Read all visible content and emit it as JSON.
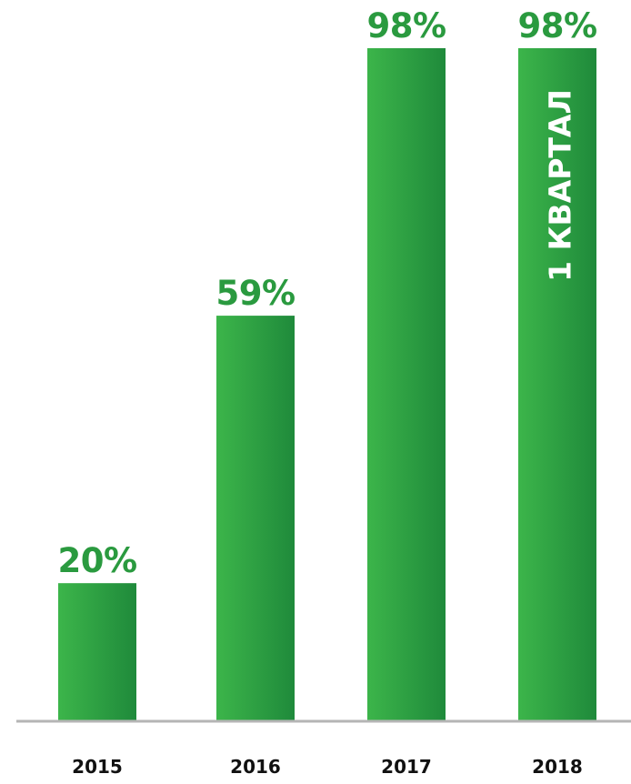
{
  "chart_data": {
    "type": "bar",
    "categories": [
      "2015",
      "2016",
      "2017",
      "2018"
    ],
    "values": [
      20,
      59,
      98,
      98
    ],
    "value_labels": [
      "20%",
      "59%",
      "98%",
      "98%"
    ],
    "annotations": [
      {
        "category": "2018",
        "text": "1 КВАРТАЛ"
      }
    ],
    "ylim": [
      0,
      100
    ],
    "grid": false,
    "legend": "none",
    "title": "",
    "xlabel": "",
    "ylabel": ""
  },
  "colors": {
    "bar_light": "#3cb54a",
    "bar_dark": "#1f8a3b",
    "label": "#2a9a3f",
    "axis": "#b5b5b5",
    "tick_text": "#111111",
    "annotation_text": "#ffffff"
  }
}
